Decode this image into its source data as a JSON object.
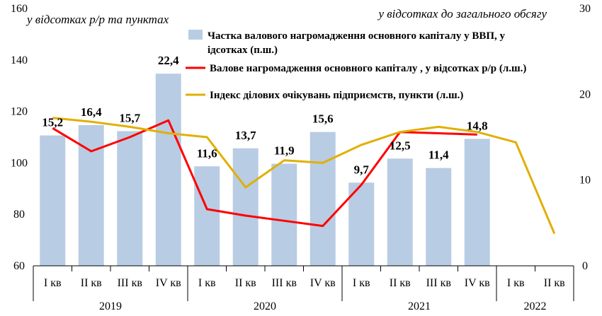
{
  "chart_data": {
    "type": "bar",
    "left_axis_label": "у відсотках р/р та пунктах",
    "right_axis_label": "у відсотках до загального обсягу",
    "left_axis": {
      "min": 60,
      "max": 160,
      "ticks": [
        60,
        80,
        100,
        120,
        140,
        160
      ]
    },
    "right_axis": {
      "min": 0,
      "max": 30,
      "ticks": [
        0,
        10,
        20,
        30
      ]
    },
    "categories": [
      "І кв",
      "ІІ кв",
      "ІІІ кв",
      "ІV кв",
      "І кв",
      "ІІ кв",
      "ІІІ кв",
      "ІV кв",
      "І кв",
      "ІІ кв",
      "ІІІ кв",
      "ІV кв",
      "І кв",
      "ІІ кв"
    ],
    "years": [
      {
        "label": "2019",
        "start": 0,
        "end": 3
      },
      {
        "label": "2020",
        "start": 4,
        "end": 7
      },
      {
        "label": "2021",
        "start": 8,
        "end": 11
      },
      {
        "label": "2022",
        "start": 12,
        "end": 13
      }
    ],
    "bar_series": {
      "name": "Частка валового нагромадження основного капіталу у ВВП, у відсотках (п.ш.)",
      "axis": "right",
      "color": "#b8cce4",
      "values": [
        15.2,
        16.4,
        15.7,
        22.4,
        11.6,
        13.7,
        11.9,
        15.6,
        9.7,
        12.5,
        11.4,
        14.8,
        null,
        null
      ],
      "labels": [
        "15,2",
        "16,4",
        "15,7",
        "22,4",
        "11,6",
        "13,7",
        "11,9",
        "15,6",
        "9,7",
        "12,5",
        "11,4",
        "14,8",
        "",
        ""
      ]
    },
    "line_series": [
      {
        "name": "Валове нагромадження основного капіталу , у відсотках р/р  (л.ш.)",
        "axis": "left",
        "color": "#ff0000",
        "values": [
          113.5,
          104.5,
          110,
          116.5,
          82,
          79.5,
          77.5,
          75.5,
          91.5,
          112,
          111.5,
          111,
          null,
          null
        ]
      },
      {
        "name": "Індекс ділових очікувань підприємств, пункти (л.ш.)",
        "axis": "left",
        "color": "#e0b000",
        "values": [
          117.5,
          116,
          114,
          111.5,
          110,
          90.5,
          101,
          100,
          107,
          112,
          114,
          112,
          108,
          72.5
        ]
      }
    ]
  }
}
